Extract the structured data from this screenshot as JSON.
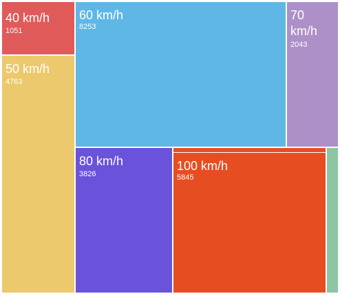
{
  "chart_data": {
    "type": "treemap",
    "items": [
      {
        "label": "40 km/h",
        "value": "1051",
        "color": "#e05a5a"
      },
      {
        "label": "50 km/h",
        "value": "4763",
        "color": "#ecc96c"
      },
      {
        "label": "60 km/h",
        "value": "8253",
        "color": "#5fb7e6"
      },
      {
        "label": "70 km/h",
        "value": "2043",
        "color": "#ad90c8"
      },
      {
        "label": "80 km/h",
        "value": "3826",
        "color": "#6a52da"
      },
      {
        "label": "100 km/h",
        "value": "5845",
        "color": "#e64e22"
      }
    ],
    "unlabeled_strips": [
      {
        "color": "#e64e22"
      },
      {
        "color": "#8cc6a2"
      }
    ]
  }
}
